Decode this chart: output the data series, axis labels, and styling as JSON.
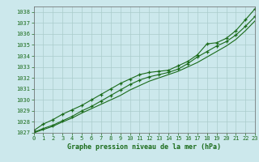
{
  "title": "Graphe pression niveau de la mer (hPa)",
  "bg_color": "#cce8ec",
  "grid_color": "#aacccc",
  "line_color": "#1a6b1a",
  "xlim": [
    0,
    23
  ],
  "ylim": [
    1027,
    1038.5
  ],
  "yticks": [
    1027,
    1028,
    1029,
    1030,
    1031,
    1032,
    1033,
    1034,
    1035,
    1036,
    1037,
    1038
  ],
  "xticks": [
    0,
    1,
    2,
    3,
    4,
    5,
    6,
    7,
    8,
    9,
    10,
    11,
    12,
    13,
    14,
    15,
    16,
    17,
    18,
    19,
    20,
    21,
    22,
    23
  ],
  "series1": [
    1027.2,
    1027.8,
    1028.2,
    1028.7,
    1029.1,
    1029.5,
    1030.0,
    1030.5,
    1031.0,
    1031.5,
    1031.9,
    1032.3,
    1032.5,
    1032.6,
    1032.7,
    1033.1,
    1033.5,
    1034.1,
    1035.1,
    1035.2,
    1035.6,
    1036.3,
    1037.3,
    1038.3
  ],
  "series2": [
    1027.05,
    1027.4,
    1027.7,
    1028.1,
    1028.5,
    1029.0,
    1029.4,
    1029.9,
    1030.4,
    1030.9,
    1031.4,
    1031.8,
    1032.1,
    1032.3,
    1032.5,
    1032.8,
    1033.3,
    1033.9,
    1034.4,
    1034.9,
    1035.3,
    1035.9,
    1036.7,
    1037.6
  ],
  "series3": [
    1027.0,
    1027.3,
    1027.6,
    1028.0,
    1028.35,
    1028.8,
    1029.2,
    1029.6,
    1030.0,
    1030.4,
    1030.9,
    1031.3,
    1031.7,
    1032.0,
    1032.3,
    1032.6,
    1033.0,
    1033.4,
    1033.9,
    1034.4,
    1034.9,
    1035.5,
    1036.3,
    1037.2
  ],
  "tick_fontsize": 5,
  "label_fontsize": 6,
  "linewidth": 0.8,
  "markersize": 3
}
